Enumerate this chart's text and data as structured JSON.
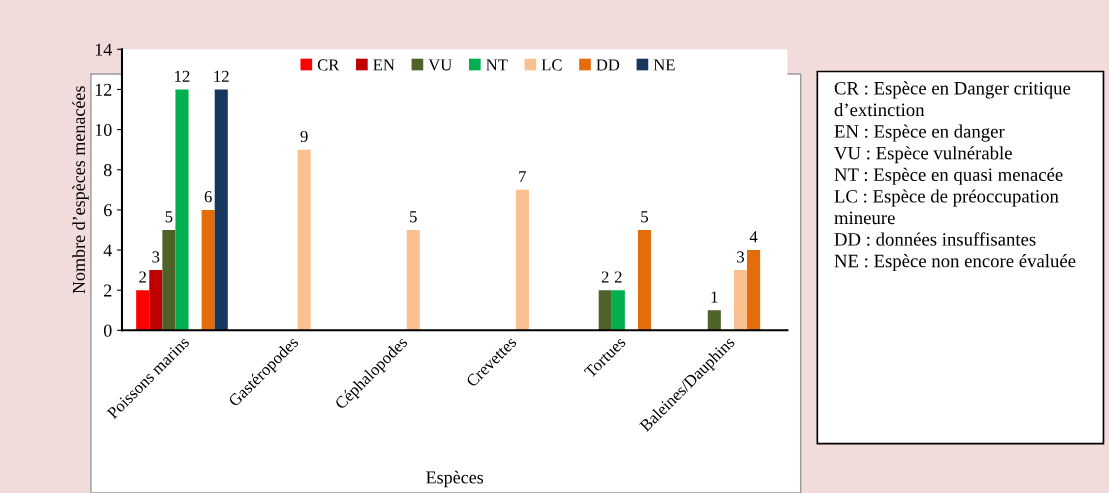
{
  "chart_data": {
    "type": "bar",
    "xlabel": "Espèces",
    "ylabel": "Nombre d’espèces menacées",
    "categories": [
      "Poissons marins",
      "Gastéropodes",
      "Céphalopodes",
      "Crevettes",
      "Tortues",
      "Baleines/Dauphins"
    ],
    "series": [
      {
        "name": "CR",
        "color": "#ff0000",
        "values": [
          2,
          null,
          null,
          null,
          null,
          null
        ]
      },
      {
        "name": "EN",
        "color": "#c00000",
        "values": [
          3,
          null,
          null,
          null,
          null,
          null
        ]
      },
      {
        "name": "VU",
        "color": "#4f6228",
        "values": [
          5,
          null,
          null,
          null,
          2,
          1
        ]
      },
      {
        "name": "NT",
        "color": "#00b050",
        "values": [
          12,
          null,
          null,
          null,
          2,
          null
        ]
      },
      {
        "name": "LC",
        "color": "#fac090",
        "values": [
          null,
          9,
          5,
          7,
          null,
          3
        ]
      },
      {
        "name": "DD",
        "color": "#e46c0a",
        "values": [
          6,
          null,
          null,
          null,
          5,
          4
        ]
      },
      {
        "name": "NE",
        "color": "#17375e",
        "values": [
          12,
          null,
          null,
          null,
          null,
          null
        ]
      }
    ],
    "ylim": [
      0,
      14
    ],
    "yticks": [
      0,
      2,
      4,
      6,
      8,
      10,
      12,
      14
    ],
    "grid": false,
    "legend": "top",
    "data_labels": true,
    "annotations": [
      "CR : Espèce en Danger critique d’extinction",
      "EN : Espèce en danger",
      "VU : Espèce vulnérable",
      "NT : Espèce en quasi menacée",
      "LC : Espèce de préoccupation mineure",
      "DD : données insuffisantes",
      "NE : Espèce non encore évaluée"
    ]
  }
}
